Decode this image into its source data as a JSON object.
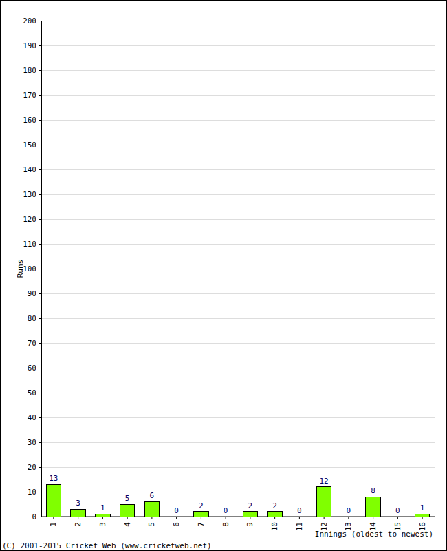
{
  "chart_data": {
    "type": "bar",
    "categories": [
      "1",
      "2",
      "3",
      "4",
      "5",
      "6",
      "7",
      "8",
      "9",
      "10",
      "11",
      "12",
      "13",
      "14",
      "15",
      "16"
    ],
    "values": [
      13,
      3,
      1,
      5,
      6,
      0,
      2,
      0,
      2,
      2,
      0,
      12,
      0,
      8,
      0,
      1
    ],
    "color": "#80ff00",
    "x_label": "Innings (oldest to newest)",
    "y_label": "Runs",
    "annotations": [
      "(C) 2001-2015 Cricket Web (www.cricketweb.net)"
    ],
    "ylim": [
      0,
      200
    ],
    "yticks": [
      0,
      10,
      20,
      30,
      40,
      50,
      60,
      70,
      80,
      90,
      100,
      110,
      120,
      130,
      140,
      150,
      160,
      170,
      180,
      190,
      200
    ],
    "grid": true,
    "data_labels": true
  }
}
